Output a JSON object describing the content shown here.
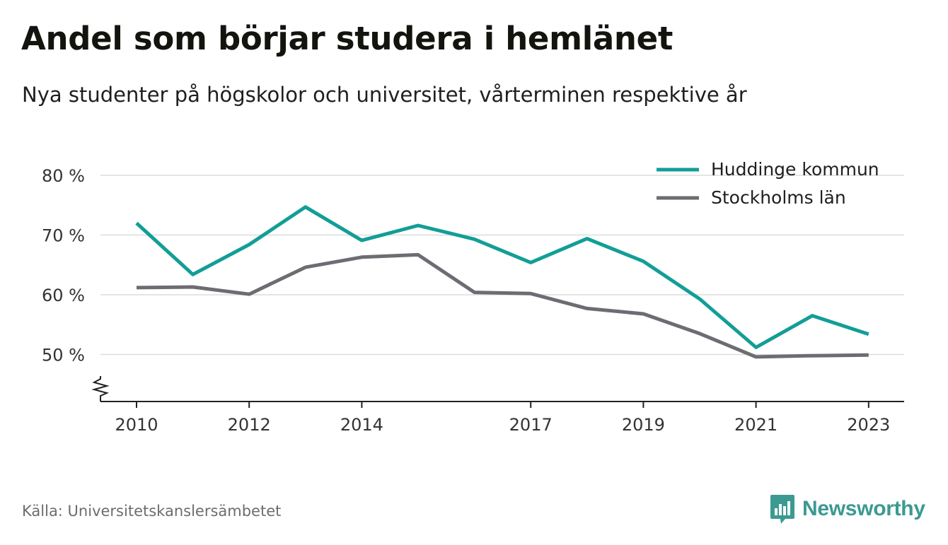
{
  "header": {
    "title": "Andel som börjar studera i hemlänet",
    "subtitle": "Nya studenter på högskolor och universitet, vårterminen respektive år"
  },
  "footer": {
    "source": "Källa: Universitetskanslersämbetet",
    "brand": "Newsworthy",
    "brand_icon": "bar-chart-speech-bubble-icon"
  },
  "chart_data": {
    "type": "line",
    "x": [
      2010,
      2011,
      2012,
      2013,
      2014,
      2015,
      2016,
      2017,
      2018,
      2019,
      2020,
      2021,
      2022,
      2023
    ],
    "x_tick_labels": [
      "2010",
      "2012",
      "2014",
      "2017",
      "2019",
      "2021",
      "2023"
    ],
    "x_tick_values": [
      2010,
      2012,
      2014,
      2017,
      2019,
      2021,
      2023
    ],
    "y_tick_labels": [
      "80 %",
      "70 %",
      "60 %",
      "50 %"
    ],
    "y_tick_values": [
      80,
      70,
      60,
      50
    ],
    "ylim": [
      42,
      80
    ],
    "y_axis_break": true,
    "grid": true,
    "legend_position": "top-right",
    "series": [
      {
        "name": "Huddinge kommun",
        "color": "#129e97",
        "values": [
          72.0,
          63.4,
          68.4,
          74.7,
          69.1,
          71.6,
          69.3,
          65.4,
          69.4,
          65.6,
          59.3,
          51.2,
          56.5,
          53.4
        ]
      },
      {
        "name": "Stockholms län",
        "color": "#6e6c72",
        "values": [
          61.2,
          61.3,
          60.1,
          64.6,
          66.3,
          66.7,
          60.4,
          60.2,
          57.7,
          56.8,
          53.5,
          49.6,
          49.8,
          49.9
        ]
      }
    ]
  }
}
